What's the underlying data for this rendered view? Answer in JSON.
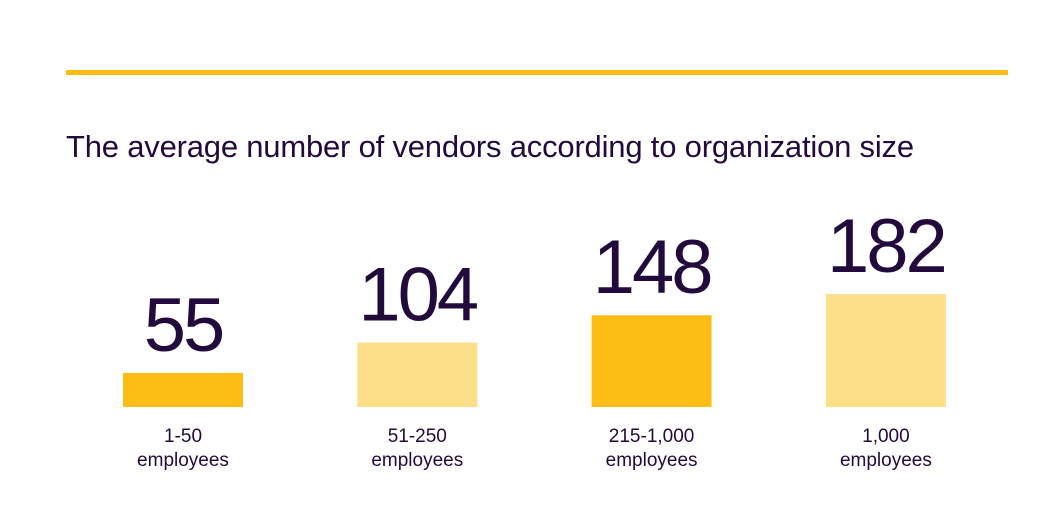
{
  "colors": {
    "text": "#220a3d",
    "accent_dark": "#fdbd14",
    "accent_light": "#fddf8a",
    "rule": "#fdbd14"
  },
  "chart_data": {
    "type": "bar",
    "title": "The average number of vendors according to organization size",
    "categories": [
      [
        "1-50",
        "employees"
      ],
      [
        "51-250",
        "employees"
      ],
      [
        "215-1,000",
        "employees"
      ],
      [
        "1,000",
        "employees"
      ]
    ],
    "values": [
      55,
      104,
      148,
      182
    ],
    "value_labels": [
      "55",
      "104",
      "148",
      "182"
    ],
    "bar_colors": [
      "#fdbd14",
      "#fddf8a",
      "#fdbd14",
      "#fddf8a"
    ],
    "xlabel": "",
    "ylabel": "",
    "grid": false,
    "legend": "none"
  }
}
